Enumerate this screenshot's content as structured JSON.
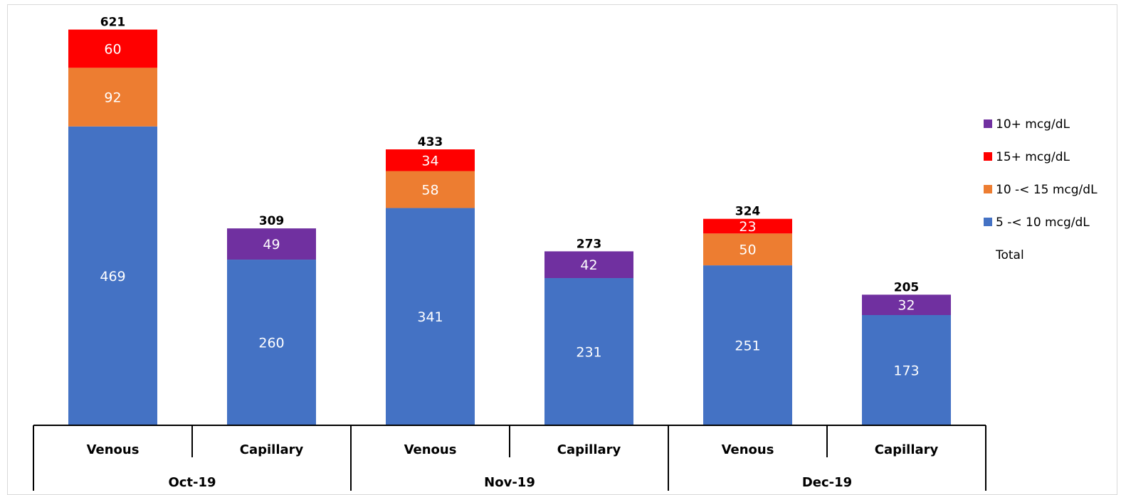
{
  "chart_data": {
    "type": "bar",
    "stacked": true,
    "groups": [
      {
        "label": "Oct-19",
        "categories": [
          "Venous",
          "Capillary"
        ]
      },
      {
        "label": "Nov-19",
        "categories": [
          "Venous",
          "Capillary"
        ]
      },
      {
        "label": "Dec-19",
        "categories": [
          "Venous",
          "Capillary"
        ]
      }
    ],
    "categories": [
      "Venous",
      "Capillary",
      "Venous",
      "Capillary",
      "Venous",
      "Capillary"
    ],
    "series": [
      {
        "name": "5 -< 10 mcg/dL",
        "color": "#4472C4",
        "values": [
          469,
          260,
          341,
          231,
          251,
          173
        ]
      },
      {
        "name": "10 -< 15 mcg/dL",
        "color": "#ED7D31",
        "values": [
          92,
          null,
          58,
          null,
          50,
          null
        ]
      },
      {
        "name": "15+ mcg/dL",
        "color": "#FF0000",
        "values": [
          60,
          null,
          34,
          null,
          23,
          null
        ]
      },
      {
        "name": "10+ mcg/dL",
        "color": "#7030A0",
        "values": [
          null,
          49,
          null,
          42,
          null,
          32
        ]
      }
    ],
    "totals": [
      621,
      309,
      433,
      273,
      324,
      205
    ],
    "legend": {
      "position": "right",
      "items": [
        {
          "label": "10+ mcg/dL",
          "color": "#7030A0"
        },
        {
          "label": "15+ mcg/dL",
          "color": "#FF0000"
        },
        {
          "label": "10 -< 15 mcg/dL",
          "color": "#ED7D31"
        },
        {
          "label": "5 -< 10 mcg/dL",
          "color": "#4472C4"
        },
        {
          "label": "Total",
          "color": null
        }
      ]
    },
    "ylim": [
      0,
      690
    ],
    "grid": false,
    "title": "",
    "xlabel": "",
    "ylabel": ""
  }
}
